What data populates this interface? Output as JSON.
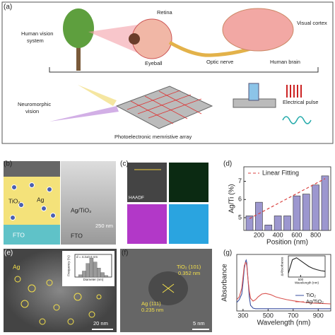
{
  "panels": {
    "a": {
      "label": "(a)",
      "human_vision": [
        "Human vision",
        "system"
      ],
      "retina": "Retina",
      "visual_cortex": "Visual cortex",
      "eyeball": "Eyeball",
      "optic_nerve": "Optic nerve",
      "human_brain": "Human brain",
      "neuromorphic": [
        "Neuromorphic",
        "vision"
      ],
      "electrical_pulse": "Electrical pulse",
      "array": "Photoelectronic memristive array"
    },
    "b": {
      "label": "(b)",
      "tio2": "TiO₂",
      "ag": "Ag",
      "fto_left": "FTO",
      "ag_tio2": "Ag/TiO₂",
      "fto_right": "FTO",
      "scale": "250 nm"
    },
    "c": {
      "label": "(c)",
      "haadf": "HAADF"
    },
    "d": {
      "label": "(d)"
    },
    "e": {
      "label": "(e)",
      "ag": "Ag",
      "scale": "20 nm"
    },
    "f": {
      "label": "(f)",
      "tio2_plane": "TiO₂ (101)",
      "tio2_spacing": "0.352 nm",
      "ag_plane": "Ag (111)",
      "ag_spacing": "0.235 nm",
      "scale": "5 nm"
    },
    "g": {
      "label": "(g)"
    }
  },
  "chart_data": [
    {
      "type": "bar",
      "x": [
        100,
        200,
        300,
        400,
        500,
        600,
        700,
        800,
        900
      ],
      "values": [
        5.1,
        5.85,
        4.6,
        5.1,
        5.1,
        6.2,
        6.3,
        6.8,
        7.3
      ],
      "color": "#9c97cf",
      "trend": {
        "name": "Linear Fitting",
        "color": "#d9413f",
        "x": [
          100,
          900
        ],
        "values": [
          4.95,
          7.15
        ]
      },
      "xlim": [
        40,
        960
      ],
      "xticks": [
        200,
        400,
        600,
        800
      ],
      "ylim": [
        4.3,
        7.8
      ],
      "yticks": [
        5,
        6,
        7
      ],
      "xlabel": "Position (nm)",
      "ylabel": "Ag/Ti (%)",
      "legend": "upper left"
    },
    {
      "type": "line",
      "x": [
        250,
        270,
        290,
        300,
        310,
        320,
        325,
        330,
        340,
        350,
        360,
        380,
        400,
        420,
        450,
        480,
        520,
        560,
        600,
        650,
        700,
        750,
        800,
        850,
        900,
        950,
        1000
      ],
      "series": [
        {
          "name": "TiO₂",
          "color": "#3a4fa0",
          "values": [
            0.3,
            0.4,
            0.6,
            1.0,
            1.5,
            1.75,
            1.8,
            1.7,
            1.1,
            0.5,
            0.2,
            0.1,
            0.08,
            0.08,
            0.08,
            0.08,
            0.08,
            0.08,
            0.08,
            0.08,
            0.08,
            0.08,
            0.08,
            0.08,
            0.08,
            0.08,
            0.08
          ]
        },
        {
          "name": "Ag/TiO₂",
          "color": "#d9534f",
          "values": [
            0.4,
            0.5,
            0.8,
            1.2,
            1.6,
            1.72,
            1.7,
            1.6,
            1.1,
            0.7,
            0.45,
            0.35,
            0.4,
            0.5,
            0.6,
            0.62,
            0.58,
            0.5,
            0.45,
            0.4,
            0.36,
            0.33,
            0.3,
            0.28,
            0.27,
            0.26,
            0.25
          ]
        }
      ],
      "xlim": [
        250,
        1000
      ],
      "xticks": [
        300,
        500,
        700,
        900
      ],
      "ylim": [
        0,
        2
      ],
      "xlabel": "Wavelength (nm)",
      "ylabel": "Absorbance",
      "legend": "lower right"
    },
    {
      "type": "histogram",
      "bins": [
        2.5,
        3,
        3.5,
        4,
        4.5,
        5,
        5.5,
        6,
        6.5
      ],
      "values": [
        3,
        8,
        18,
        25,
        20,
        12,
        6,
        2
      ],
      "color": "#9a9a9a",
      "xlim": [
        2,
        7
      ],
      "ylim": [
        0,
        30
      ],
      "xlabel": "Diameter (nm)",
      "ylabel": "Frequency (%)",
      "annotation": "d = 4.2±0.6 nm"
    },
    {
      "type": "line",
      "x": [
        350,
        400,
        450,
        500,
        550,
        600,
        650,
        700,
        750,
        800
      ],
      "series": [
        {
          "name": "ΔAbsorbance",
          "color": "#222222",
          "values": [
            0.2,
            0.9,
            1.0,
            0.85,
            0.7,
            0.55,
            0.45,
            0.38,
            0.33,
            0.3
          ]
        }
      ],
      "xlim": [
        350,
        800
      ],
      "xticks": [
        500
      ],
      "ylim": [
        0,
        1.1
      ],
      "xlabel": "Wavelength (nm)",
      "ylabel": "ΔAbsorbance"
    }
  ]
}
